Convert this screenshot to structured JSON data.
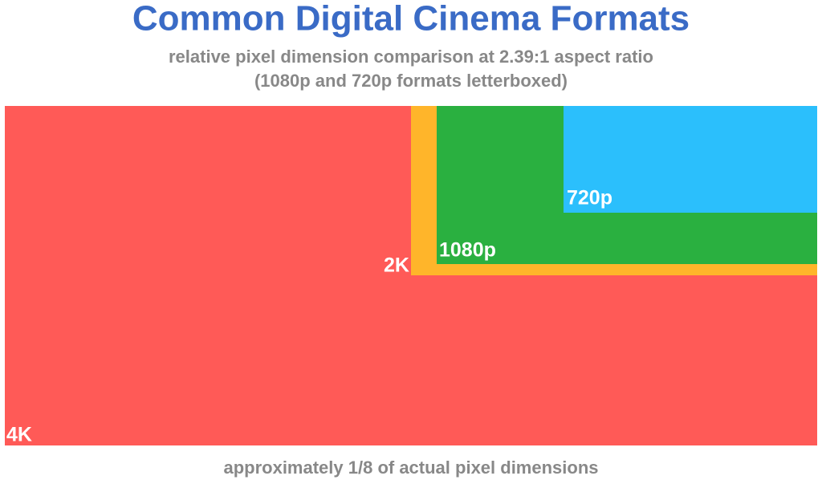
{
  "header": {
    "title": "Common Digital Cinema Formats",
    "subtitle_line1": "relative pixel dimension comparison at 2.39:1 aspect ratio",
    "subtitle_line2": "(1080p and 720p formats letterboxed)"
  },
  "formats": [
    {
      "label": "4K"
    },
    {
      "label": "2K"
    },
    {
      "label": "1080p"
    },
    {
      "label": "720p"
    }
  ],
  "footer": "approximately 1/8 of actual pixel dimensions"
}
